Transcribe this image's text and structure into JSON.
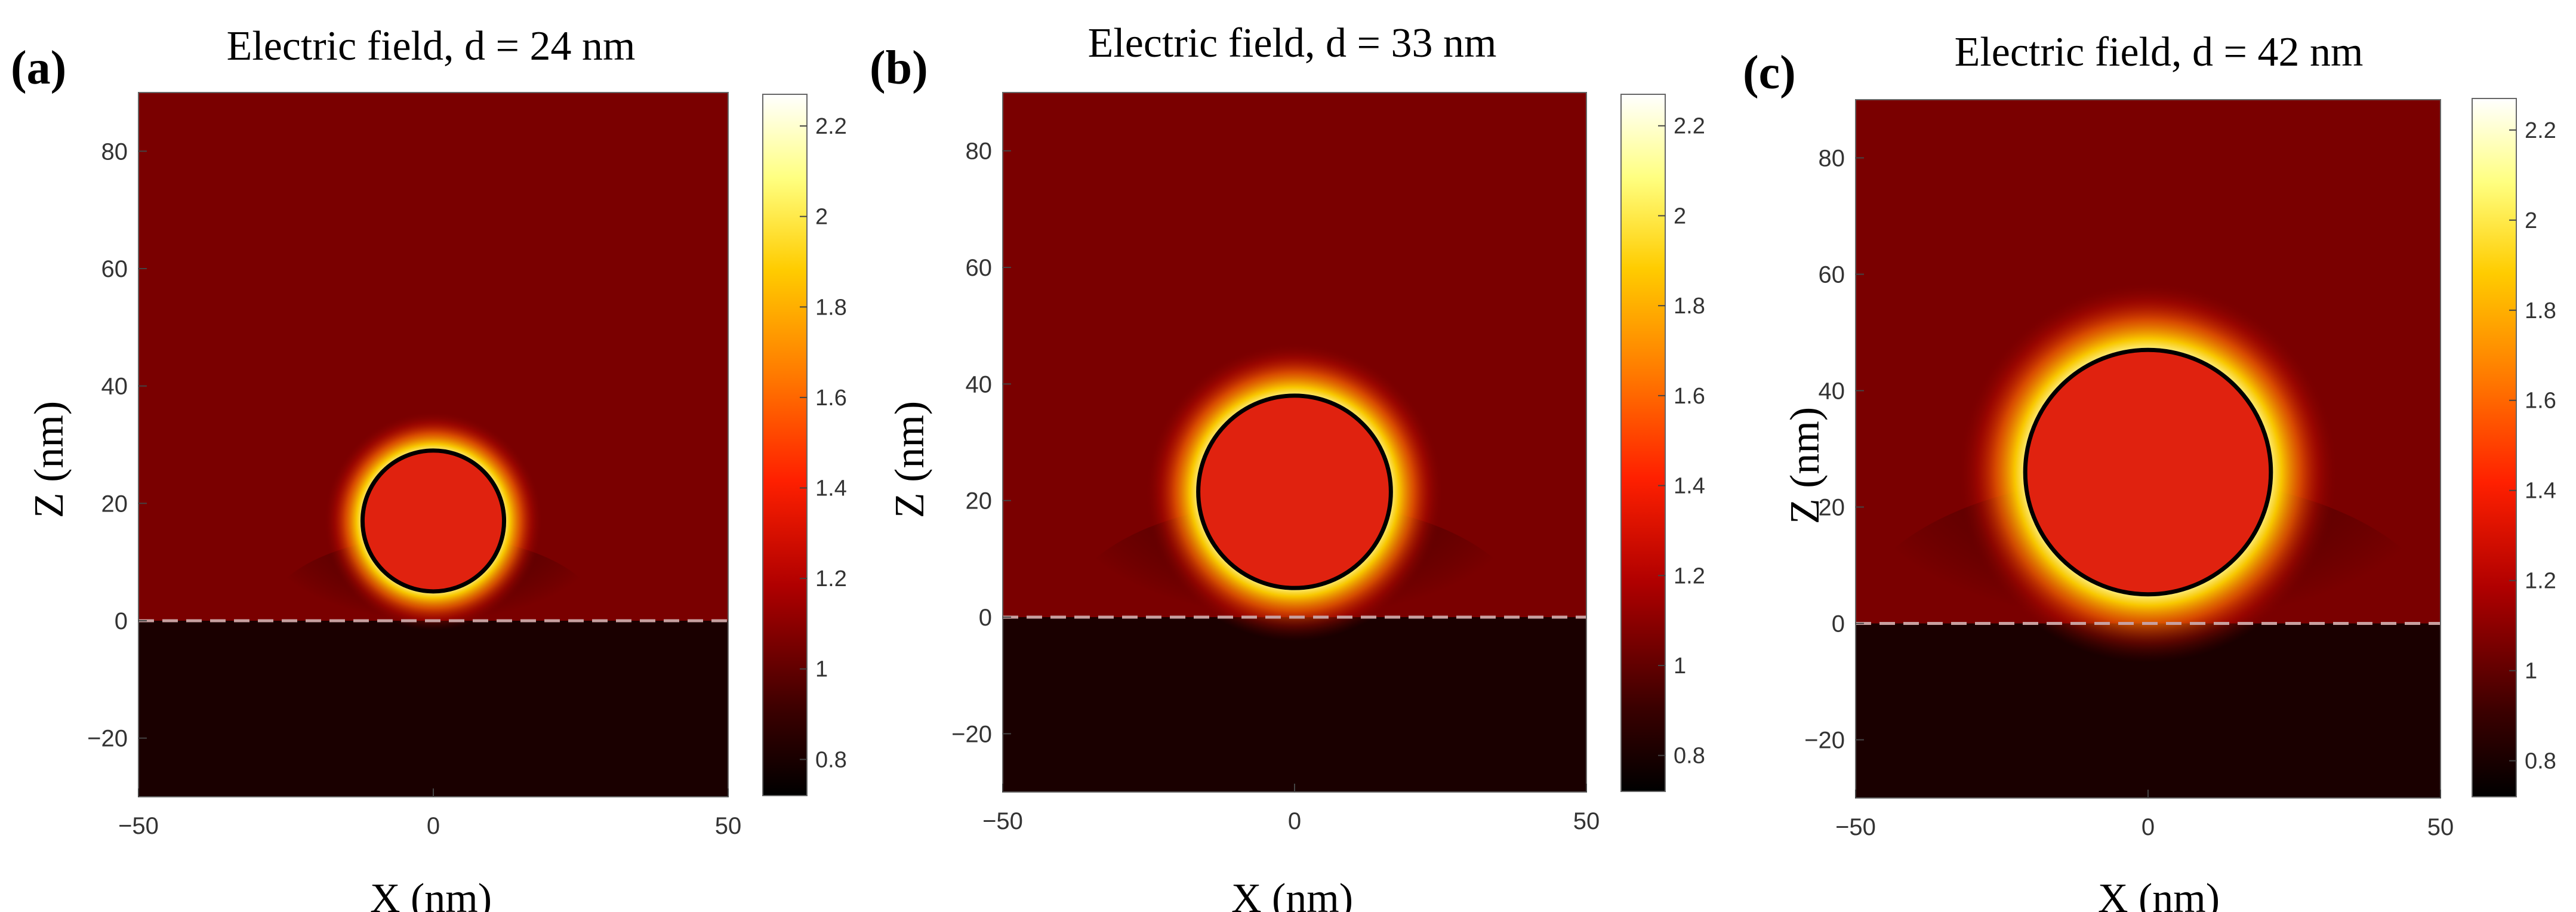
{
  "chart_data": [
    {
      "type": "heatmap",
      "panel_label": "(a)",
      "title": "Electric field, d = 24 nm",
      "xlabel": "X (nm)",
      "ylabel": "Z (nm)",
      "xlim": [
        -50,
        50
      ],
      "ylim": [
        -30,
        90
      ],
      "xticks": [
        -50,
        0,
        50
      ],
      "yticks": [
        -20,
        0,
        20,
        40,
        60,
        80
      ],
      "colorbar": {
        "range": [
          0.72,
          2.27
        ],
        "ticks": [
          0.8,
          1,
          1.2,
          1.4,
          1.6,
          1.8,
          2,
          2.2
        ],
        "colormap": "hot"
      },
      "particle": {
        "diameter_nm": 24,
        "center_x": 0,
        "center_z": 17
      },
      "substrate_z": 0
    },
    {
      "type": "heatmap",
      "panel_label": "(b)",
      "title": "Electric field, d = 33 nm",
      "xlabel": "X (nm)",
      "ylabel": "Z (nm)",
      "xlim": [
        -50,
        50
      ],
      "ylim": [
        -30,
        90
      ],
      "xticks": [
        -50,
        0,
        50
      ],
      "yticks": [
        -20,
        0,
        20,
        40,
        60,
        80
      ],
      "colorbar": {
        "range": [
          0.72,
          2.27
        ],
        "ticks": [
          0.8,
          1,
          1.2,
          1.4,
          1.6,
          1.8,
          2,
          2.2
        ],
        "colormap": "hot"
      },
      "particle": {
        "diameter_nm": 33,
        "center_x": 0,
        "center_z": 21.5
      },
      "substrate_z": 0
    },
    {
      "type": "heatmap",
      "panel_label": "(c)",
      "title": "Electric field, d = 42 nm",
      "xlabel": "X (nm)",
      "ylabel": "Z (nm)",
      "xlim": [
        -50,
        50
      ],
      "ylim": [
        -30,
        90
      ],
      "xticks": [
        -50,
        0,
        50
      ],
      "yticks": [
        -20,
        0,
        20,
        40,
        60,
        80
      ],
      "colorbar": {
        "range": [
          0.72,
          2.27
        ],
        "ticks": [
          0.8,
          1,
          1.2,
          1.4,
          1.6,
          1.8,
          2,
          2.2
        ],
        "colormap": "hot"
      },
      "particle": {
        "diameter_nm": 42,
        "center_x": 0,
        "center_z": 26
      },
      "substrate_z": 0
    }
  ],
  "colors": {
    "background_field": "#7a0000",
    "substrate": "#1a0000",
    "particle_fill": "#e0220f",
    "particle_edge": "#000000",
    "substrate_line": "#c8a0a0"
  }
}
